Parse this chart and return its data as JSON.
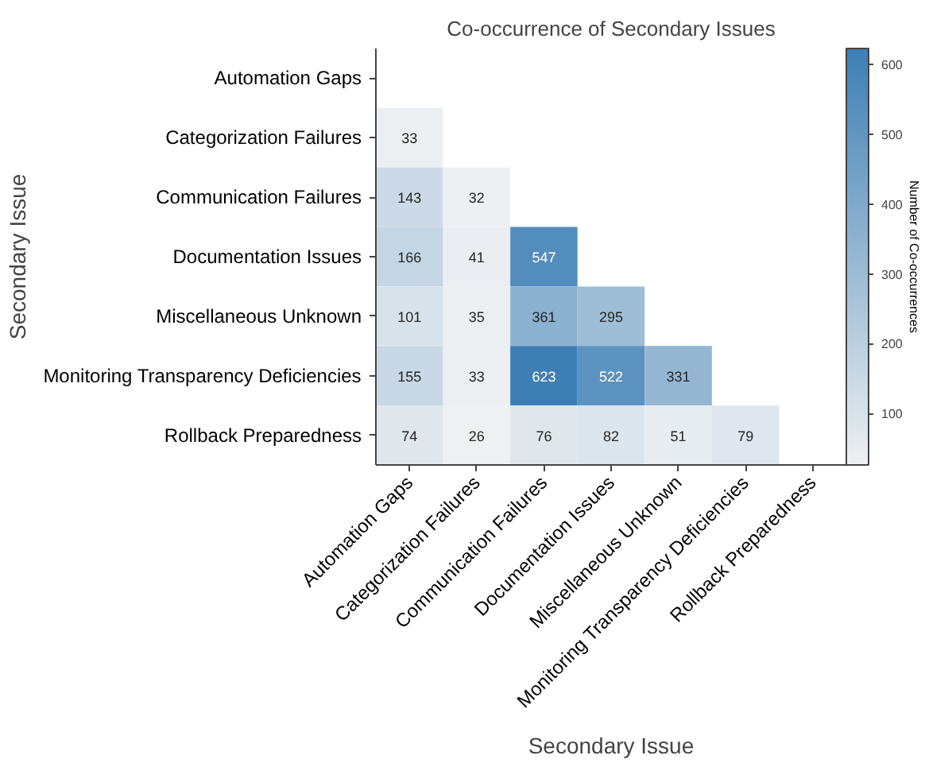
{
  "chart_data": {
    "type": "heatmap",
    "title": "Co-occurrence of Secondary Issues",
    "xlabel": "Secondary Issue",
    "ylabel": "Secondary Issue",
    "clabel": "Number of Co-occurrences",
    "categories": [
      "Automation Gaps",
      "Categorization Failures",
      "Communication Failures",
      "Documentation Issues",
      "Miscellaneous Unknown",
      "Monitoring Transparency Deficiencies",
      "Rollback Preparedness"
    ],
    "y_categories": [
      "Automation Gaps",
      "Categorization Failures",
      "Communication Failures",
      "Documentation Issues",
      "Miscellaneous Unknown",
      "Monitoring Transparency Deficiencies",
      "Rollback Preparedness"
    ],
    "cells": [
      [
        null,
        null,
        null,
        null,
        null,
        null,
        null
      ],
      [
        33,
        null,
        null,
        null,
        null,
        null,
        null
      ],
      [
        143,
        32,
        null,
        null,
        null,
        null,
        null
      ],
      [
        166,
        41,
        547,
        null,
        null,
        null,
        null
      ],
      [
        101,
        35,
        361,
        295,
        null,
        null,
        null
      ],
      [
        155,
        33,
        623,
        522,
        331,
        null,
        null
      ],
      [
        74,
        26,
        76,
        82,
        51,
        79,
        null
      ]
    ],
    "clim": [
      26,
      623
    ],
    "cticks": [
      100,
      200,
      300,
      400,
      500,
      600
    ],
    "data_labels": true,
    "grid": false
  }
}
